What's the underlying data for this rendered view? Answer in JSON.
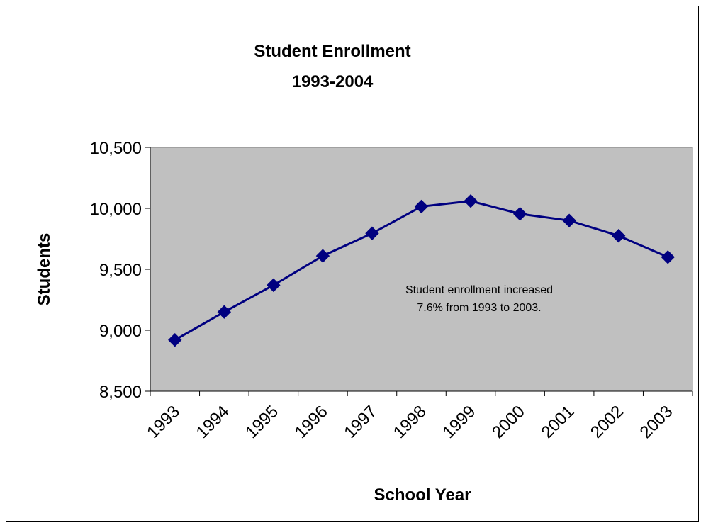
{
  "chart_data": {
    "type": "line",
    "title": "Student Enrollment",
    "subtitle": "1993-2004",
    "xlabel": "School Year",
    "ylabel": "Students",
    "categories": [
      "1993",
      "1994",
      "1995",
      "1996",
      "1997",
      "1998",
      "1999",
      "2000",
      "2001",
      "2002",
      "2003"
    ],
    "series": [
      {
        "values": [
          8920,
          9150,
          9370,
          9610,
          9795,
          10015,
          10060,
          9955,
          9900,
          9775,
          9600
        ]
      }
    ],
    "ylim": [
      8500,
      10500
    ],
    "yticks": [
      8500,
      9000,
      9500,
      10000,
      10500
    ],
    "ytick_labels": [
      "8,500",
      "9,000",
      "9,500",
      "10,000",
      "10,500"
    ],
    "grid": false,
    "legend": "none",
    "annotation": {
      "line1": "Student enrollment increased",
      "line2": "7.6% from 1993 to 2003."
    },
    "colors": {
      "plot_background": "#c0c0c0",
      "series": "#000080",
      "axis": "#000000"
    }
  }
}
